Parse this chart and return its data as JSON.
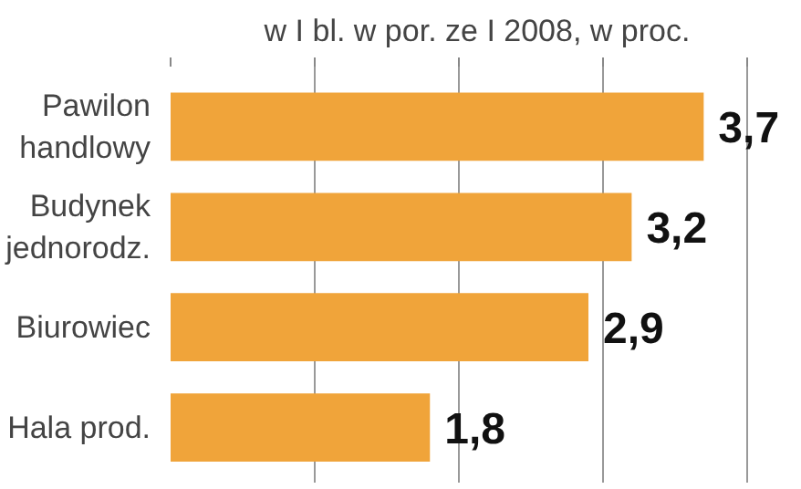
{
  "chart_data": {
    "type": "bar",
    "orientation": "horizontal",
    "title": "w I bl. w por. ze I 2008, w proc.",
    "categories": [
      "Pawilon\nhandlowy",
      "Budynek\njednorodz.",
      "Biurowiec",
      "Hala prod."
    ],
    "values": [
      3.7,
      3.2,
      2.9,
      1.8
    ],
    "value_labels": [
      "3,7",
      "3,2",
      "2,9",
      "1,8"
    ],
    "color": "#f0a43a",
    "grid": "x",
    "tick_labels": "y"
  }
}
